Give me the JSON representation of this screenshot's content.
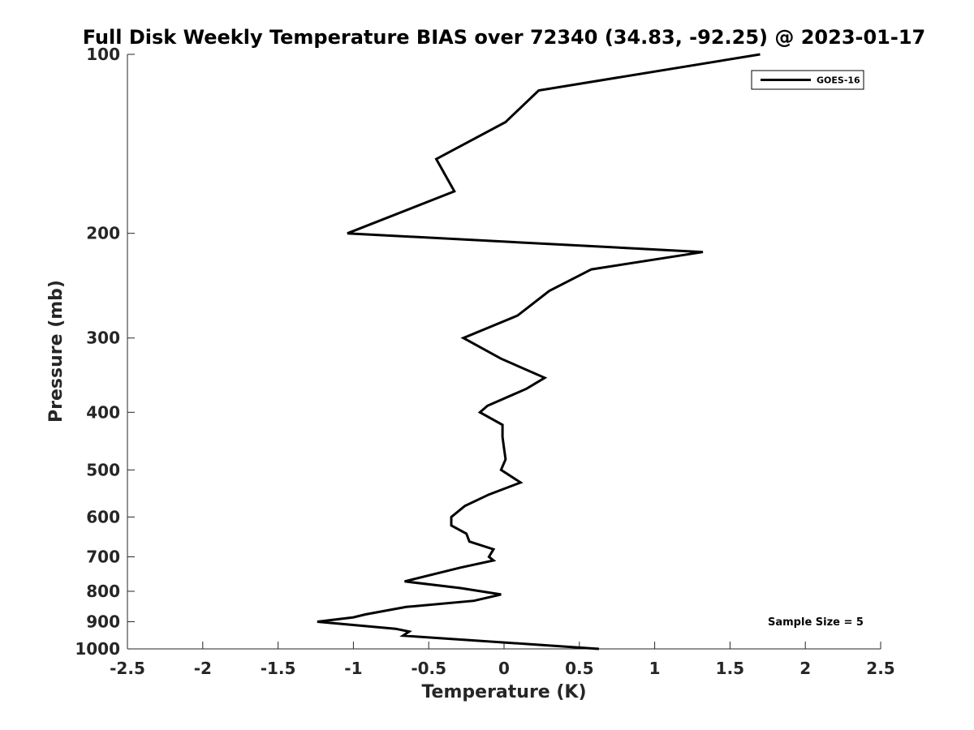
{
  "chart_data": {
    "type": "line",
    "title": "Full Disk Weekly Temperature BIAS over 72340 (34.83, -92.25) @ 2023-01-17",
    "xlabel": "Temperature (K)",
    "ylabel": "Pressure (mb)",
    "xlim": [
      -2.5,
      2.5
    ],
    "ylim": [
      100,
      1000
    ],
    "y_scale": "log",
    "y_reversed": true,
    "grid": false,
    "x_ticks": [
      -2.5,
      -2,
      -1.5,
      -1,
      -0.5,
      0,
      0.5,
      1,
      1.5,
      2,
      2.5
    ],
    "x_tick_labels": [
      "-2.5",
      "-2",
      "-1.5",
      "-1",
      "-0.5",
      "0",
      "0.5",
      "1",
      "1.5",
      "2",
      "2.5"
    ],
    "y_ticks": [
      100,
      200,
      300,
      400,
      500,
      600,
      700,
      800,
      900,
      1000
    ],
    "y_tick_labels": [
      "100",
      "200",
      "300",
      "400",
      "500",
      "600",
      "700",
      "800",
      "900",
      "1000"
    ],
    "legend_position": "top-right",
    "annotation": "Sample Size = 5",
    "series": [
      {
        "name": "GOES-16",
        "color": "#000000",
        "x": [
          1.7,
          0.23,
          0.01,
          -0.45,
          -0.33,
          -1.04,
          1.32,
          0.58,
          0.3,
          0.09,
          -0.27,
          -0.02,
          0.27,
          0.15,
          -0.11,
          -0.16,
          -0.01,
          -0.01,
          0.0,
          0.01,
          -0.02,
          0.11,
          -0.1,
          -0.26,
          -0.35,
          -0.35,
          -0.25,
          -0.23,
          -0.07,
          -0.1,
          -0.07,
          -0.29,
          -0.66,
          -0.29,
          -0.02,
          -0.2,
          -0.65,
          -0.92,
          -1.0,
          -1.24,
          -0.72,
          -0.63,
          -0.67,
          0.63
        ],
        "y": [
          100,
          115,
          130,
          150,
          170,
          200,
          215,
          230,
          250,
          275,
          300,
          325,
          350,
          365,
          390,
          400,
          420,
          440,
          460,
          480,
          500,
          525,
          550,
          575,
          600,
          620,
          640,
          660,
          680,
          700,
          710,
          730,
          770,
          790,
          810,
          830,
          850,
          875,
          885,
          900,
          925,
          935,
          950,
          1000
        ]
      }
    ]
  }
}
